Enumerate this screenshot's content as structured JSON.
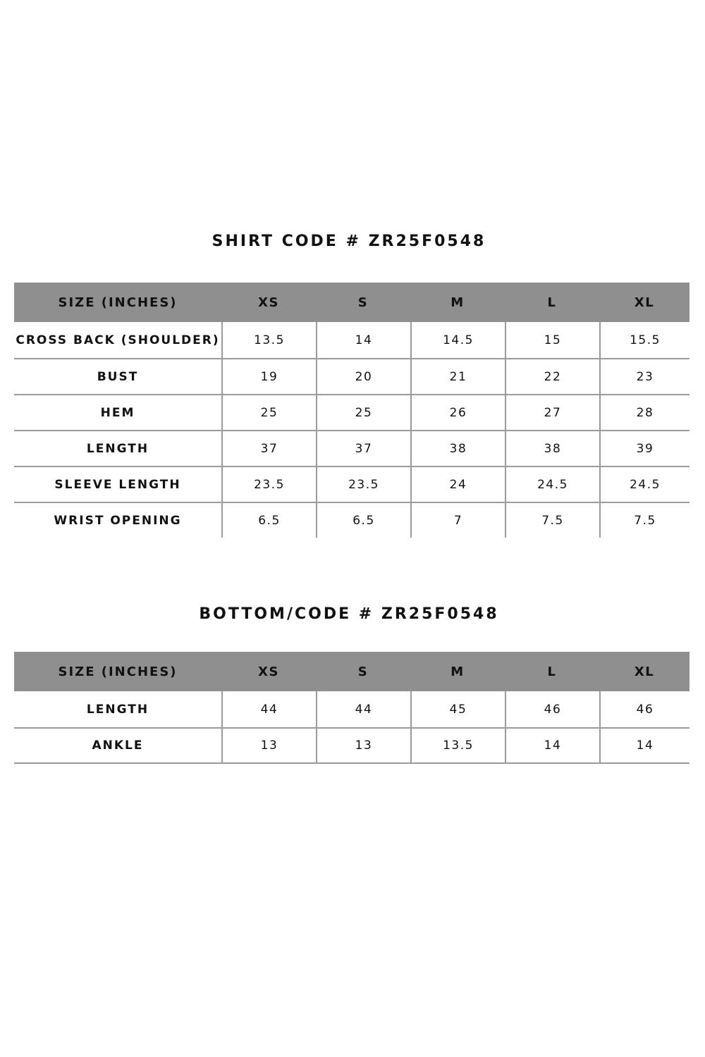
{
  "shirt": {
    "title": "SHIRT CODE #  ZR25F0548",
    "header": [
      "SIZE (INCHES)",
      "XS",
      "S",
      "M",
      "L",
      "XL"
    ],
    "rows": [
      [
        "CROSS BACK (SHOULDER)",
        "13.5",
        "14",
        "14.5",
        "15",
        "15.5"
      ],
      [
        "BUST",
        "19",
        "20",
        "21",
        "22",
        "23"
      ],
      [
        "HEM",
        "25",
        "25",
        "26",
        "27",
        "28"
      ],
      [
        "LENGTH",
        "37",
        "37",
        "38",
        "38",
        "39"
      ],
      [
        "SLEEVE LENGTH",
        "23.5",
        "23.5",
        "24",
        "24.5",
        "24.5"
      ],
      [
        "WRIST OPENING",
        "6.5",
        "6.5",
        "7",
        "7.5",
        "7.5"
      ]
    ]
  },
  "bottom": {
    "title": "BOTTOM/CODE  # ZR25F0548",
    "header": [
      "SIZE (INCHES)",
      "XS",
      "S",
      "M",
      "L",
      "XL"
    ],
    "rows": [
      [
        "LENGTH",
        "44",
        "44",
        "45",
        "46",
        "46"
      ],
      [
        "ANKLE",
        "13",
        "13",
        "13.5",
        "14",
        "14"
      ]
    ]
  },
  "colors": {
    "header_bg": "#8f8f8f",
    "grid": "#9a9a9a",
    "text": "#111111"
  }
}
